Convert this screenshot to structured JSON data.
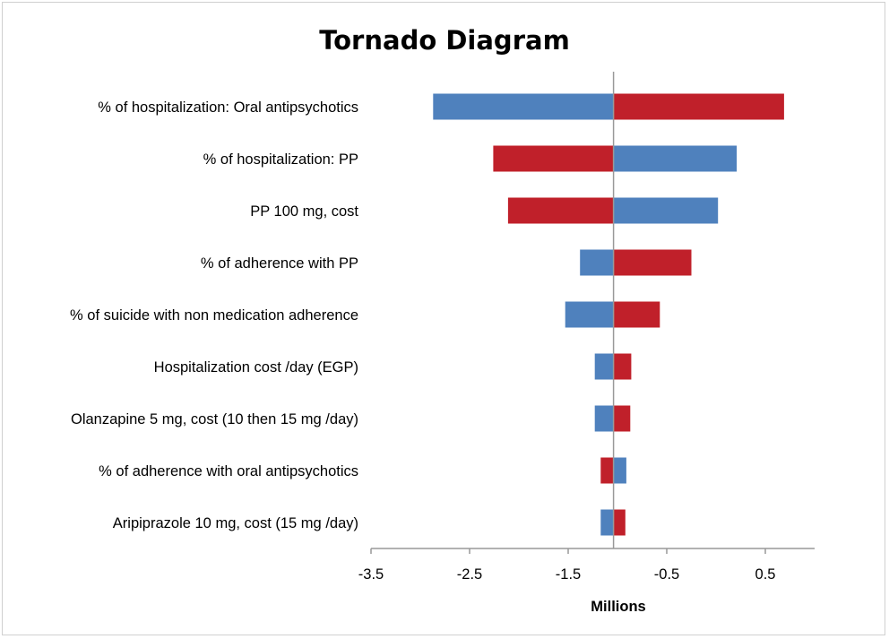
{
  "chart_data": {
    "type": "bar",
    "orientation": "horizontal",
    "subtype": "tornado",
    "title": "Tornado Diagram",
    "xlabel": "Millions",
    "ylabel": "",
    "xlim": [
      -3.5,
      1.0
    ],
    "xticks": [
      -3.5,
      -2.5,
      -1.5,
      -0.5,
      0.5
    ],
    "tick_labels": [
      "-3.5",
      "-2.5",
      "-1.5",
      "-0.5",
      "0.5"
    ],
    "baseline": -1.04,
    "grid": false,
    "legend": "none",
    "colors": {
      "blue": "#4F81BD",
      "red": "#C0202A"
    },
    "categories": [
      "% of hospitalization: Oral antipsychotics",
      "% of hospitalization: PP",
      "PP 100 mg, cost",
      "% of adherence with PP",
      "% of suicide with non medication adherence",
      "Hospitalization cost /day (EGP)",
      "Olanzapine 5 mg, cost (10 then 15 mg /day)",
      "% of adherence with oral antipsychotics",
      "Aripiprazole 10 mg, cost (15 mg /day)"
    ],
    "bars": [
      {
        "low": -2.87,
        "high": 0.69,
        "low_color": "blue",
        "high_color": "red"
      },
      {
        "low": -2.26,
        "high": 0.21,
        "low_color": "red",
        "high_color": "blue"
      },
      {
        "low": -2.11,
        "high": 0.02,
        "low_color": "red",
        "high_color": "blue"
      },
      {
        "low": -1.38,
        "high": -0.25,
        "low_color": "blue",
        "high_color": "red"
      },
      {
        "low": -1.53,
        "high": -0.57,
        "low_color": "blue",
        "high_color": "red"
      },
      {
        "low": -1.23,
        "high": -0.86,
        "low_color": "blue",
        "high_color": "red"
      },
      {
        "low": -1.23,
        "high": -0.87,
        "low_color": "blue",
        "high_color": "red"
      },
      {
        "low": -1.17,
        "high": -0.91,
        "low_color": "red",
        "high_color": "blue"
      },
      {
        "low": -1.17,
        "high": -0.92,
        "low_color": "blue",
        "high_color": "red"
      }
    ]
  }
}
